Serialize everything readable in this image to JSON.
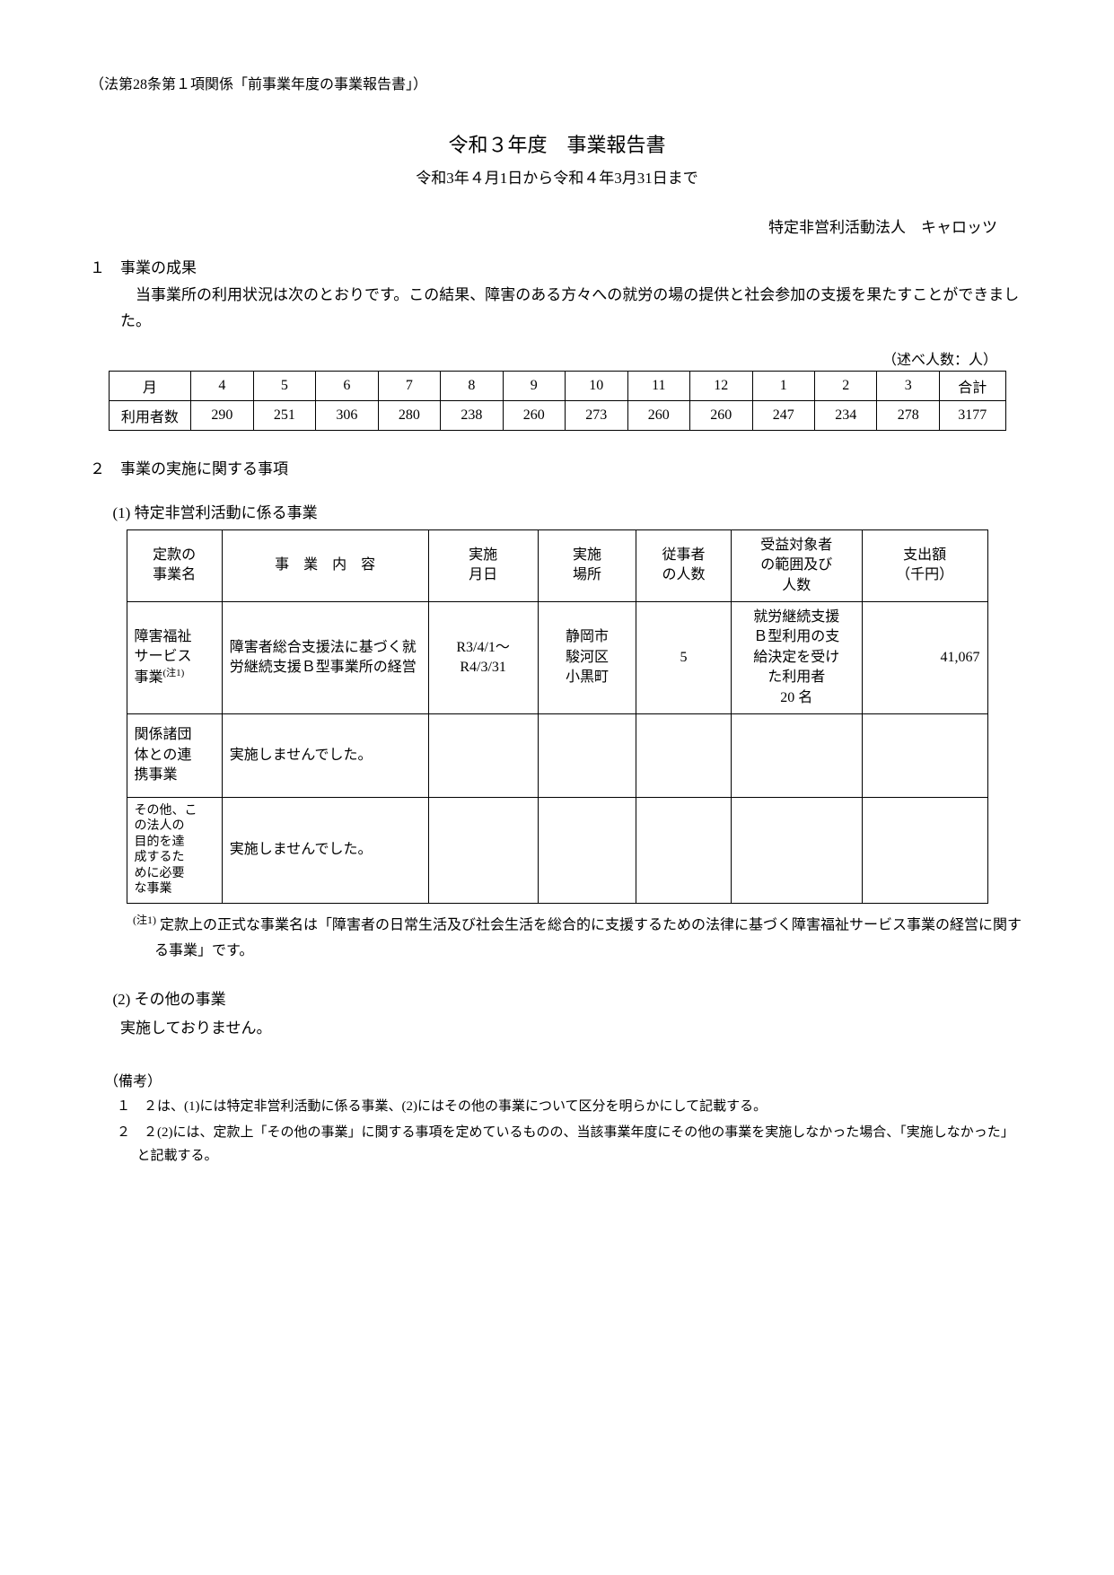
{
  "header_note": "（法第28条第１項関係「前事業年度の事業報告書」）",
  "title": "令和３年度　事業報告書",
  "subtitle": "令和3年４月1日から令和４年3月31日まで",
  "org_name": "特定非営利活動法人　キャロッツ",
  "section1": {
    "head": "１　事業の成果",
    "body": "当事業所の利用状況は次のとおりです。この結果、障害のある方々への就労の場の提供と社会参加の支援を果たすことができました。"
  },
  "unit_note": "（述べ人数：人）",
  "month_table": {
    "header_first": "月",
    "months": [
      "4",
      "5",
      "6",
      "7",
      "8",
      "9",
      "10",
      "11",
      "12",
      "1",
      "2",
      "3"
    ],
    "header_total": "合計",
    "row_label": "利用者数",
    "values": [
      "290",
      "251",
      "306",
      "280",
      "238",
      "260",
      "273",
      "260",
      "260",
      "247",
      "234",
      "278"
    ],
    "total": "3177"
  },
  "section2": {
    "head": "２　事業の実施に関する事項",
    "sub1": "(1)  特定非営利活動に係る事業"
  },
  "biz_table": {
    "headers": {
      "c1": "定款の\n事業名",
      "c2": "事　業　内　容",
      "c3": "実施\n月日",
      "c4": "実施\n場所",
      "c5": "従事者\nの人数",
      "c6": "受益対象者\nの範囲及び\n人数",
      "c7": "支出額\n（千円）"
    },
    "rows": [
      {
        "c1": "障害福祉\nサービス\n事業",
        "c1_sup": "(注1)",
        "c2": "障害者総合支援法に基づく就労継続支援Ｂ型事業所の経営",
        "c3": "R3/4/1～\nR4/3/31",
        "c4": "静岡市\n駿河区\n小黒町",
        "c5": "5",
        "c6": "就労継続支援\nＢ型利用の支\n給決定を受け\nた利用者\n20 名",
        "c7": "41,067"
      },
      {
        "c1": "関係諸団\n体との連\n携事業",
        "c2": "実施しませんでした。",
        "c3": "",
        "c4": "",
        "c5": "",
        "c6": "",
        "c7": ""
      },
      {
        "c1": "その他、こ\nの法人の\n目的を達\n成するた\nめに必要\nな事業",
        "c2": "実施しませんでした。",
        "c3": "",
        "c4": "",
        "c5": "",
        "c6": "",
        "c7": ""
      }
    ]
  },
  "footnote_sup": "(注1)",
  "footnote_text": " 定款上の正式な事業名は「障害者の日常生活及び社会生活を総合的に支援するための法律に基づく障害福祉サービス事業の経営に関する事業」です。",
  "sub2": "(2)  その他の事業",
  "sub2_body": "実施しておりません。",
  "remarks": {
    "head": "（備考）",
    "items": [
      "１　２は、(1)には特定非営利活動に係る事業、(2)にはその他の事業について区分を明らかにして記載する。",
      "２　２(2)には、定款上「その他の事業」に関する事項を定めているものの、当該事業年度にその他の事業を実施しなかった場合、「実施しなかった」と記載する。"
    ]
  }
}
